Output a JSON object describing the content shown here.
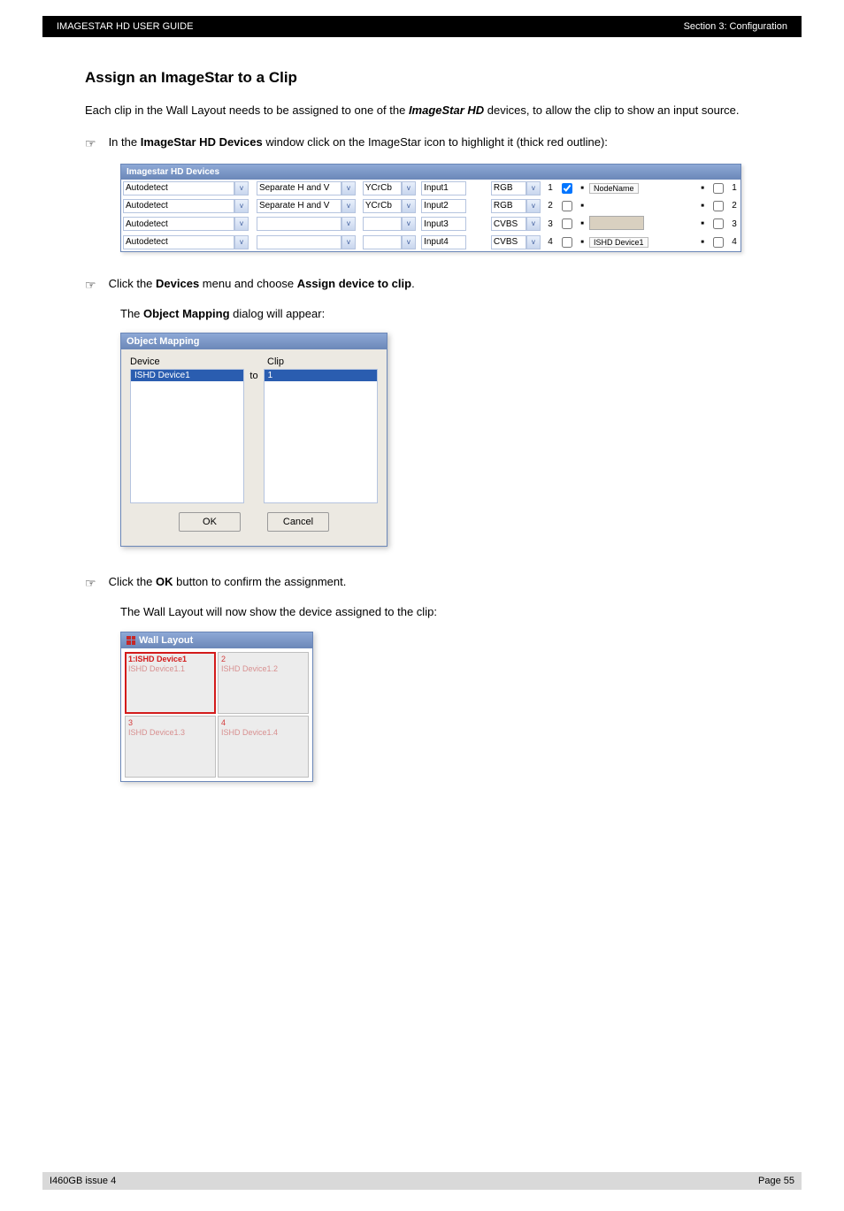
{
  "header": {
    "left": "IMAGESTAR HD USER GUIDE",
    "right": "Section 3: Configuration"
  },
  "title": "Assign an ImageStar to a Clip",
  "intro_parts": {
    "p1": "Each clip in the Wall Layout needs to be assigned to one of the ",
    "p2": "ImageStar HD",
    "p3": " devices, to allow the clip to show an input source."
  },
  "step1_parts": {
    "p1": "In the ",
    "p2": "ImageStar HD Devices",
    "p3": " window click on the ImageStar icon to highlight it (thick red outline):"
  },
  "step2_parts": {
    "p1": "Click the ",
    "p2": "Devices",
    "p3": " menu and choose ",
    "p4": "Assign device to clip",
    "p5": "."
  },
  "step2_after_parts": {
    "p1": "The ",
    "p2": "Object Mapping",
    "p3": " dialog will appear:"
  },
  "step3_parts": {
    "p1": "Click the ",
    "p2": "OK",
    "p3": " button to confirm the assignment."
  },
  "step3_after": "The Wall Layout will now show the device assigned to the clip:",
  "pointer_glyph": "☞",
  "devices_window": {
    "title": "Imagestar HD Devices",
    "rows": [
      {
        "mode": "Autodetect",
        "sync": "Separate H and V",
        "cs": "YCrCb",
        "input": "Input1",
        "sig": "RGB",
        "num": "1",
        "checked": true,
        "label_type": "node",
        "label": "NodeName"
      },
      {
        "mode": "Autodetect",
        "sync": "Separate H and V",
        "cs": "YCrCb",
        "input": "Input2",
        "sig": "RGB",
        "num": "2",
        "checked": false,
        "label_type": "none",
        "label": ""
      },
      {
        "mode": "Autodetect",
        "sync": "",
        "cs": "",
        "input": "Input3",
        "sig": "CVBS",
        "num": "3",
        "checked": false,
        "label_type": "thumb",
        "label": ""
      },
      {
        "mode": "Autodetect",
        "sync": "",
        "cs": "",
        "input": "Input4",
        "sig": "CVBS",
        "num": "4",
        "checked": false,
        "label_type": "node",
        "label": "ISHD Device1"
      }
    ],
    "trailing_nums": [
      "1",
      "2",
      "3",
      "4"
    ]
  },
  "object_mapping": {
    "title": "Object Mapping",
    "device_lbl": "Device",
    "clip_lbl": "Clip",
    "to_lbl": "to",
    "device_item": "ISHD Device1",
    "clip_item": "1",
    "ok": "OK",
    "cancel": "Cancel"
  },
  "wall_layout": {
    "title": "Wall Layout",
    "cells": [
      {
        "num": "1",
        "label": "1:ISHD Device1",
        "dev": "ISHD Device1.1",
        "assigned": true
      },
      {
        "num": "2",
        "label": "2",
        "dev": "ISHD Device1.2",
        "assigned": false
      },
      {
        "num": "3",
        "label": "3",
        "dev": "ISHD Device1.3",
        "assigned": false
      },
      {
        "num": "4",
        "label": "4",
        "dev": "ISHD Device1.4",
        "assigned": false
      }
    ]
  },
  "footer": {
    "left": "I460GB issue 4",
    "right": "Page 55"
  },
  "colors": {
    "topbar_bg": "#000000",
    "topbar_fg": "#ffffff",
    "titlebar_from": "#8ea9d6",
    "titlebar_to": "#6b87b8",
    "highlight_red": "#d31b1b",
    "footer_bg": "#d9d9d9"
  }
}
